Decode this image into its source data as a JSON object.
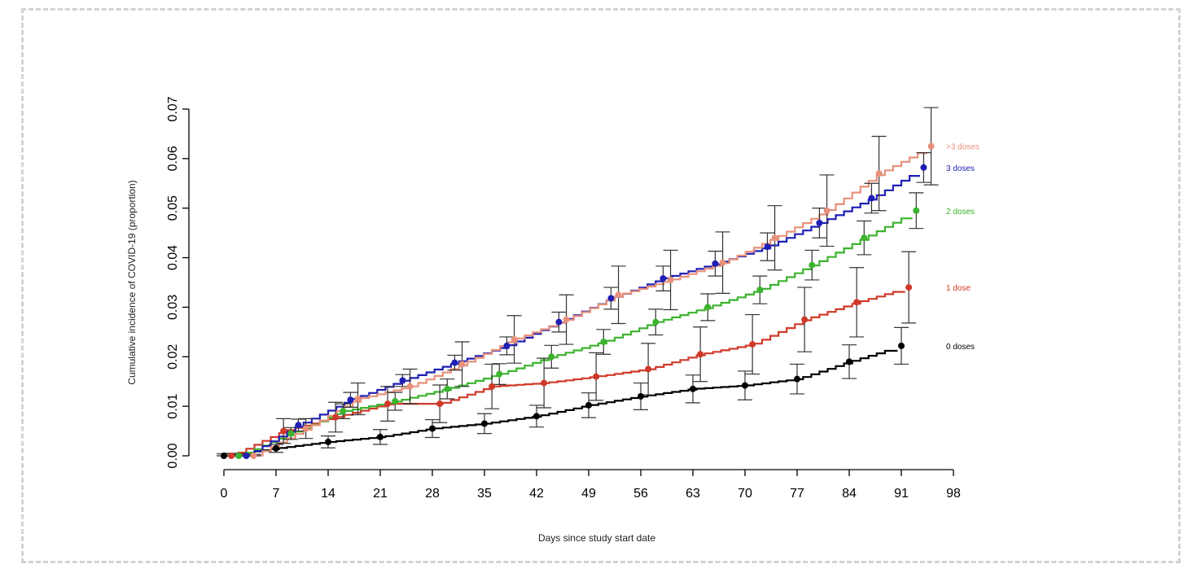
{
  "chart_data": {
    "type": "line",
    "title": "",
    "xlabel": "Days since study start date",
    "ylabel": "Cumulative incidence of COVID-19 (proportion)",
    "xlim": [
      0,
      98
    ],
    "ylim": [
      0,
      0.07
    ],
    "xticks": [
      "0",
      "7",
      "14",
      "21",
      "28",
      "35",
      "42",
      "49",
      "56",
      "63",
      "70",
      "77",
      "84",
      "91",
      "98"
    ],
    "yticks": [
      "0.00",
      "0.01",
      "0.02",
      "0.03",
      "0.04",
      "0.05",
      "0.06",
      "0.07"
    ],
    "legend_placement": "right (end-of-line labels)",
    "series": [
      {
        "name": "0 doses",
        "color": "#000000",
        "x": [
          0,
          7,
          14,
          21,
          28,
          35,
          42,
          49,
          56,
          63,
          70,
          77,
          84,
          91
        ],
        "y": [
          0,
          0.0015,
          0.0028,
          0.0038,
          0.0055,
          0.0065,
          0.008,
          0.0102,
          0.012,
          0.0135,
          0.0142,
          0.0155,
          0.019,
          0.0222
        ],
        "ci": [
          0.0004,
          0.0008,
          0.0012,
          0.0015,
          0.0018,
          0.002,
          0.0022,
          0.0025,
          0.0027,
          0.0028,
          0.0029,
          0.003,
          0.0034,
          0.0037
        ]
      },
      {
        "name": "1 dose",
        "color": "#d03a2a",
        "x": [
          1,
          8,
          15,
          22,
          29,
          36,
          43,
          50,
          57,
          64,
          71,
          78,
          85,
          92
        ],
        "y": [
          0,
          0.005,
          0.0078,
          0.0105,
          0.0105,
          0.014,
          0.0147,
          0.016,
          0.0175,
          0.0205,
          0.0225,
          0.0275,
          0.031,
          0.034
        ],
        "ci": [
          0.0005,
          0.0025,
          0.003,
          0.0035,
          0.0038,
          0.0045,
          0.005,
          0.0048,
          0.0052,
          0.0055,
          0.006,
          0.0065,
          0.007,
          0.0072
        ]
      },
      {
        "name": "2 doses",
        "color": "#3cb32e",
        "x": [
          2,
          9,
          16,
          23,
          30,
          37,
          44,
          51,
          58,
          65,
          72,
          79,
          86,
          93
        ],
        "y": [
          0,
          0.0045,
          0.009,
          0.011,
          0.0135,
          0.0165,
          0.02,
          0.023,
          0.027,
          0.03,
          0.0335,
          0.0385,
          0.044,
          0.0495
        ],
        "ci": [
          0.0004,
          0.0012,
          0.0015,
          0.0018,
          0.002,
          0.0021,
          0.0023,
          0.0025,
          0.0026,
          0.0027,
          0.0028,
          0.003,
          0.0034,
          0.0036
        ]
      },
      {
        "name": "3 doses",
        "color": "#1f1fb4",
        "x": [
          3,
          10,
          17,
          24,
          31,
          38,
          45,
          52,
          59,
          66,
          73,
          80,
          87,
          94
        ],
        "y": [
          0,
          0.0062,
          0.0113,
          0.0152,
          0.0188,
          0.0222,
          0.027,
          0.0318,
          0.0358,
          0.0388,
          0.0422,
          0.047,
          0.052,
          0.0582
        ],
        "ci": [
          0.0003,
          0.0012,
          0.0015,
          0.0012,
          0.0015,
          0.0018,
          0.002,
          0.0022,
          0.0025,
          0.0025,
          0.0028,
          0.003,
          0.003,
          0.003
        ]
      },
      {
        "name": ">3 doses",
        "color": "#e8907a",
        "x": [
          4,
          11,
          18,
          25,
          32,
          39,
          46,
          53,
          60,
          67,
          74,
          81,
          88,
          95
        ],
        "y": [
          0,
          0.0055,
          0.0115,
          0.014,
          0.0185,
          0.0235,
          0.0275,
          0.0325,
          0.0355,
          0.039,
          0.044,
          0.0495,
          0.057,
          0.0625
        ],
        "ci": [
          0.0003,
          0.002,
          0.0032,
          0.0035,
          0.0045,
          0.0048,
          0.005,
          0.0058,
          0.006,
          0.0062,
          0.0065,
          0.0072,
          0.0075,
          0.0078
        ]
      }
    ]
  }
}
